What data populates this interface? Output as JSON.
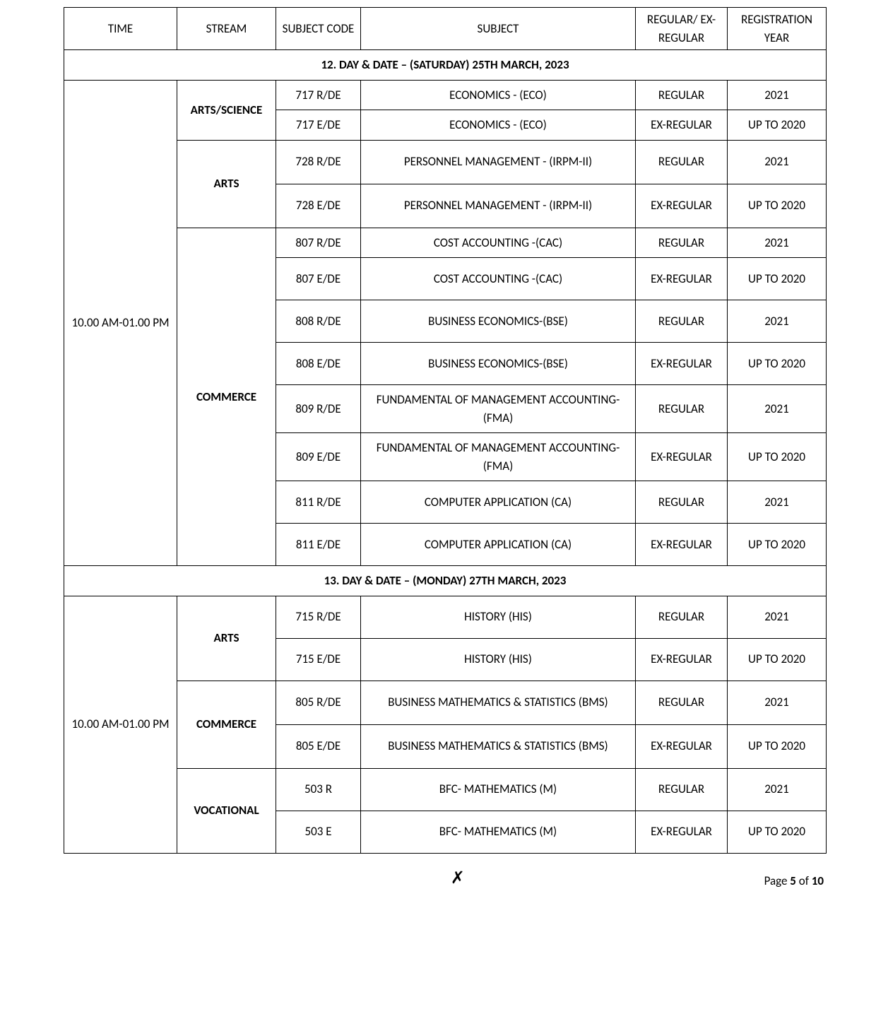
{
  "columns": {
    "time": "TIME",
    "stream": "STREAM",
    "code": "SUBJECT CODE",
    "subject": "SUBJECT",
    "reg": "REGULAR/ EX-REGULAR",
    "year": "REGISTRATION YEAR"
  },
  "day12": {
    "header": "12. DAY & DATE – (SATURDAY) 25TH   MARCH, 2023",
    "time": "10.00 AM-01.00 PM",
    "streams": {
      "arts_science": "ARTS/SCIENCE",
      "arts": "ARTS",
      "commerce": "COMMERCE"
    },
    "rows": [
      {
        "code": "717 R/DE",
        "subject": "ECONOMICS - (ECO)",
        "reg": "REGULAR",
        "year": "2021"
      },
      {
        "code": "717 E/DE",
        "subject": "ECONOMICS - (ECO)",
        "reg": "EX-REGULAR",
        "year": "UP TO 2020"
      },
      {
        "code": "728 R/DE",
        "subject": "PERSONNEL MANAGEMENT - (IRPM-II)",
        "reg": "REGULAR",
        "year": "2021"
      },
      {
        "code": "728 E/DE",
        "subject": "PERSONNEL MANAGEMENT - (IRPM-II)",
        "reg": "EX-REGULAR",
        "year": "UP TO 2020"
      },
      {
        "code": "807 R/DE",
        "subject": "COST ACCOUNTING -(CAC)",
        "reg": "REGULAR",
        "year": "2021"
      },
      {
        "code": "807 E/DE",
        "subject": "COST ACCOUNTING -(CAC)",
        "reg": "EX-REGULAR",
        "year": "UP TO 2020"
      },
      {
        "code": "808 R/DE",
        "subject": "BUSINESS ECONOMICS-(BSE)",
        "reg": "REGULAR",
        "year": "2021"
      },
      {
        "code": "808 E/DE",
        "subject": "BUSINESS ECONOMICS-(BSE)",
        "reg": "EX-REGULAR",
        "year": "UP TO 2020"
      },
      {
        "code": "809 R/DE",
        "subject": "FUNDAMENTAL OF MANAGEMENT ACCOUNTING- (FMA)",
        "reg": "REGULAR",
        "year": "2021"
      },
      {
        "code": "809 E/DE",
        "subject": "FUNDAMENTAL OF MANAGEMENT ACCOUNTING- (FMA)",
        "reg": "EX-REGULAR",
        "year": "UP TO 2020"
      },
      {
        "code": "811 R/DE",
        "subject": "COMPUTER APPLICATION (CA)",
        "reg": "REGULAR",
        "year": "2021"
      },
      {
        "code": "811 E/DE",
        "subject": "COMPUTER APPLICATION (CA)",
        "reg": "EX-REGULAR",
        "year": "UP TO 2020"
      }
    ]
  },
  "day13": {
    "header": "13. DAY & DATE – (MONDAY) 27TH  MARCH, 2023",
    "time": "10.00 AM-01.00 PM",
    "streams": {
      "arts": "ARTS",
      "commerce": "COMMERCE",
      "vocational": "VOCATIONAL"
    },
    "rows": [
      {
        "code": "715 R/DE",
        "subject": "HISTORY  (HIS)",
        "reg": "REGULAR",
        "year": "2021"
      },
      {
        "code": "715 E/DE",
        "subject": "HISTORY  (HIS)",
        "reg": "EX-REGULAR",
        "year": "UP TO 2020"
      },
      {
        "code": "805 R/DE",
        "subject": "BUSINESS MATHEMATICS  & STATISTICS (BMS)",
        "reg": "REGULAR",
        "year": "2021"
      },
      {
        "code": "805 E/DE",
        "subject": "BUSINESS MATHEMATICS  & STATISTICS (BMS)",
        "reg": "EX-REGULAR",
        "year": "UP TO 2020"
      },
      {
        "code": "503 R",
        "subject": "BFC- MATHEMATICS (M)",
        "reg": "REGULAR",
        "year": "2021"
      },
      {
        "code": "503 E",
        "subject": "BFC- MATHEMATICS (M)",
        "reg": "EX-REGULAR",
        "year": "UP TO 2020"
      }
    ]
  },
  "footer": {
    "signature": "✗",
    "page_prefix": "Page ",
    "page_current": "5",
    "page_sep": " of ",
    "page_total": "10"
  }
}
